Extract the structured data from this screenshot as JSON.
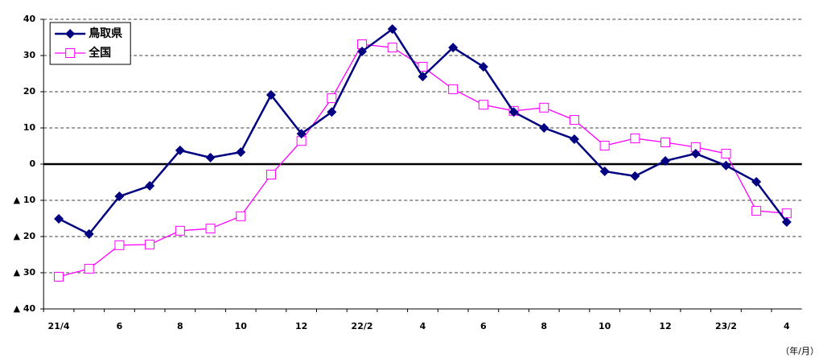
{
  "chart_data": {
    "type": "line",
    "categories": [
      "21/4",
      null,
      "6",
      null,
      "8",
      null,
      "10",
      null,
      "12",
      null,
      "22/2",
      null,
      "4",
      null,
      "6",
      null,
      "8",
      null,
      "10",
      null,
      "12",
      null,
      "23/2",
      null,
      "4"
    ],
    "series": [
      {
        "name": "鳥取県",
        "color": "#000080",
        "marker": "diamond",
        "values": [
          -15.1,
          -19.3,
          -8.9,
          -6,
          3.8,
          1.8,
          3.3,
          19.1,
          8.4,
          14.4,
          31.1,
          37.3,
          24.2,
          32.2,
          26.9,
          14.4,
          10,
          6.9,
          -2,
          -3.3,
          0.9,
          2.9,
          -0.4,
          -4.9,
          -16
        ]
      },
      {
        "name": "全国",
        "color": "#ff00ff",
        "marker": "square",
        "values": [
          -31.1,
          -28.9,
          -22.4,
          -22.2,
          -18.4,
          -17.8,
          -14.4,
          -2.9,
          6.4,
          18.2,
          33.1,
          32.2,
          26.9,
          20.7,
          16.4,
          14.7,
          15.6,
          12.2,
          5.1,
          7.1,
          6,
          4.7,
          2.9,
          -12.9,
          -13.6
        ]
      }
    ],
    "ylim": [
      -40,
      40
    ],
    "yticks": [
      {
        "value": -40,
        "label": "▲ 40"
      },
      {
        "value": -30,
        "label": "▲ 30"
      },
      {
        "value": -20,
        "label": "▲ 20"
      },
      {
        "value": -10,
        "label": "▲ 10"
      },
      0,
      10,
      20,
      30,
      40
    ],
    "xlabel": "（年/月）",
    "grid": true,
    "legend": "upper left"
  }
}
